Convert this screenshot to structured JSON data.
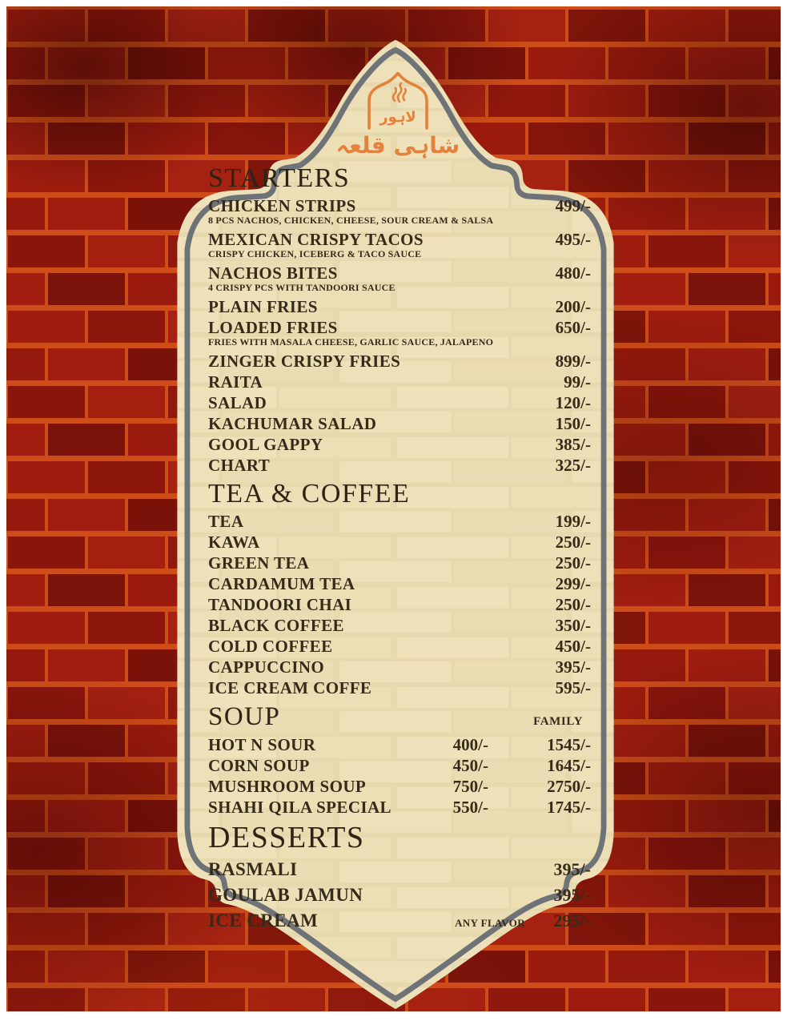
{
  "logo": {
    "line1": "لاہور",
    "line2": "شاہی قلعہ",
    "color": "#e5813a"
  },
  "colors": {
    "brick_mortar": "#cd4c18",
    "brick_face": "#9a1a0e",
    "card_cream": "#eee1ba",
    "card_border": "#6e7377",
    "text": "#362a19"
  },
  "menu": {
    "sections": [
      {
        "title": "STARTERS",
        "key": "starters",
        "items": [
          {
            "name": "CHICKEN STRIPS",
            "price": "499/-",
            "desc": "8 PCS NACHOS, CHICKEN, CHEESE, SOUR CREAM & SALSA"
          },
          {
            "name": "MEXICAN CRISPY TACOS",
            "price": "495/-",
            "desc": "CRISPY CHICKEN, ICEBERG & TACO SAUCE"
          },
          {
            "name": "NACHOS BITES",
            "price": "480/-",
            "desc": "4 CRISPY PCS WITH TANDOORI SAUCE"
          },
          {
            "name": "PLAIN FRIES",
            "price": "200/-"
          },
          {
            "name": "LOADED FRIES",
            "price": "650/-",
            "desc": "FRIES WITH MASALA CHEESE, GARLIC SAUCE, JALAPENO"
          },
          {
            "name": "ZINGER CRISPY FRIES",
            "price": "899/-",
            "gap": true
          },
          {
            "name": "RAITA",
            "price": "99/-"
          },
          {
            "name": "SALAD",
            "price": "120/-"
          },
          {
            "name": "KACHUMAR SALAD",
            "price": "150/-"
          },
          {
            "name": "GOOL GAPPY",
            "price": "385/-"
          },
          {
            "name": "CHART",
            "price": "325/-"
          }
        ]
      },
      {
        "title": "TEA & COFFEE",
        "key": "tea-coffee",
        "items": [
          {
            "name": "TEA",
            "price": "199/-"
          },
          {
            "name": "KAWA",
            "price": "250/-"
          },
          {
            "name": "GREEN TEA",
            "price": "250/-"
          },
          {
            "name": "CARDAMUM TEA",
            "price": "299/-"
          },
          {
            "name": "TANDOORI CHAI",
            "price": "250/-"
          },
          {
            "name": "BLACK COFFEE",
            "price": "350/-"
          },
          {
            "name": "COLD COFFEE",
            "price": "450/-"
          },
          {
            "name": "CAPPUCCINO",
            "price": "395/-"
          },
          {
            "name": "ICE CREAM COFFE",
            "price": "595/-"
          }
        ]
      },
      {
        "title": "SOUP",
        "key": "soup",
        "family_header": "FAMILY",
        "items": [
          {
            "name": "HOT N SOUR",
            "price": "400/-",
            "family": "1545/-"
          },
          {
            "name": "CORN SOUP",
            "price": "450/-",
            "family": "1645/-"
          },
          {
            "name": "MUSHROOM SOUP",
            "price": "750/-",
            "family": "2750/-"
          },
          {
            "name": "SHAHI QILA SPECIAL",
            "price": "550/-",
            "family": "1745/-"
          }
        ]
      },
      {
        "title": "DESSERTS",
        "key": "desserts",
        "items": [
          {
            "name": "RASMALI",
            "price": "395/-"
          },
          {
            "name": "GOULAB JAMUN",
            "price": "395/-"
          },
          {
            "name": "ICE CREAM",
            "note": "ANY FLAVOR",
            "price": "295/-"
          }
        ]
      }
    ]
  }
}
